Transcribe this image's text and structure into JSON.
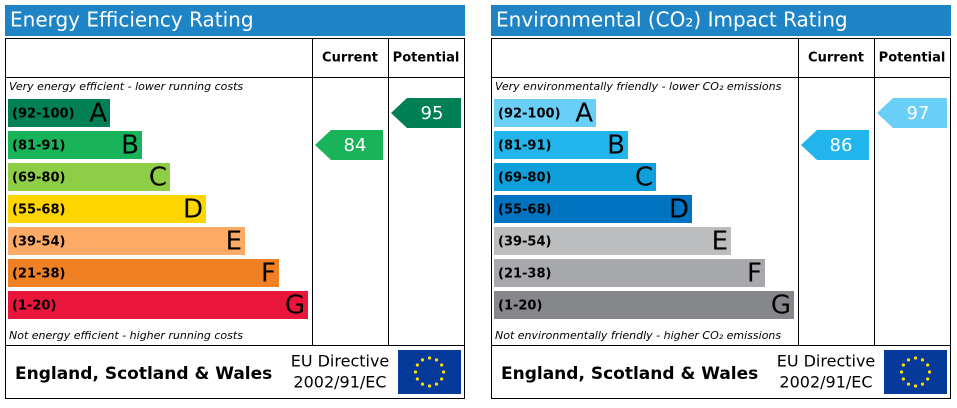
{
  "chart_data": [
    {
      "type": "rating",
      "title": "Energy Efficiency Rating",
      "columns": [
        "Current",
        "Potential"
      ],
      "top_note": "Very energy efficient - lower running costs",
      "bottom_note": "Not energy efficient - higher running costs",
      "bands": [
        {
          "label": "(92-100)",
          "low": 92,
          "letter": "A",
          "color": "#008054"
        },
        {
          "label": "(81-91)",
          "low": 81,
          "letter": "B",
          "color": "#19b459"
        },
        {
          "label": "(69-80)",
          "low": 69,
          "letter": "C",
          "color": "#8dce46"
        },
        {
          "label": "(55-68)",
          "low": 55,
          "letter": "D",
          "color": "#ffd500"
        },
        {
          "label": "(39-54)",
          "low": 39,
          "letter": "E",
          "color": "#fcaa65"
        },
        {
          "label": "(21-38)",
          "low": 21,
          "letter": "F",
          "color": "#ef8023"
        },
        {
          "label": "(1-20)",
          "low": 1,
          "letter": "G",
          "color": "#e9153b"
        }
      ],
      "current": 84,
      "potential": 95,
      "region": "England, Scotland & Wales",
      "directive": [
        "EU Directive",
        "2002/91/EC"
      ]
    },
    {
      "type": "rating",
      "title": "Environmental (CO₂) Impact Rating",
      "columns": [
        "Current",
        "Potential"
      ],
      "top_note": "Very environmentally friendly - lower CO₂ emissions",
      "bottom_note": "Not environmentally friendly - higher CO₂ emissions",
      "bands": [
        {
          "label": "(92-100)",
          "low": 92,
          "letter": "A",
          "color": "#6acff6"
        },
        {
          "label": "(81-91)",
          "low": 81,
          "letter": "B",
          "color": "#22b5eb"
        },
        {
          "label": "(69-80)",
          "low": 69,
          "letter": "C",
          "color": "#0f9fda"
        },
        {
          "label": "(55-68)",
          "low": 55,
          "letter": "D",
          "color": "#0074c0"
        },
        {
          "label": "(39-54)",
          "low": 39,
          "letter": "E",
          "color": "#bbbdbf"
        },
        {
          "label": "(21-38)",
          "low": 21,
          "letter": "F",
          "color": "#a6a8ab"
        },
        {
          "label": "(1-20)",
          "low": 1,
          "letter": "G",
          "color": "#85878a"
        }
      ],
      "current": 86,
      "potential": 97,
      "region": "England, Scotland & Wales",
      "directive": [
        "EU Directive",
        "2002/91/EC"
      ]
    }
  ]
}
